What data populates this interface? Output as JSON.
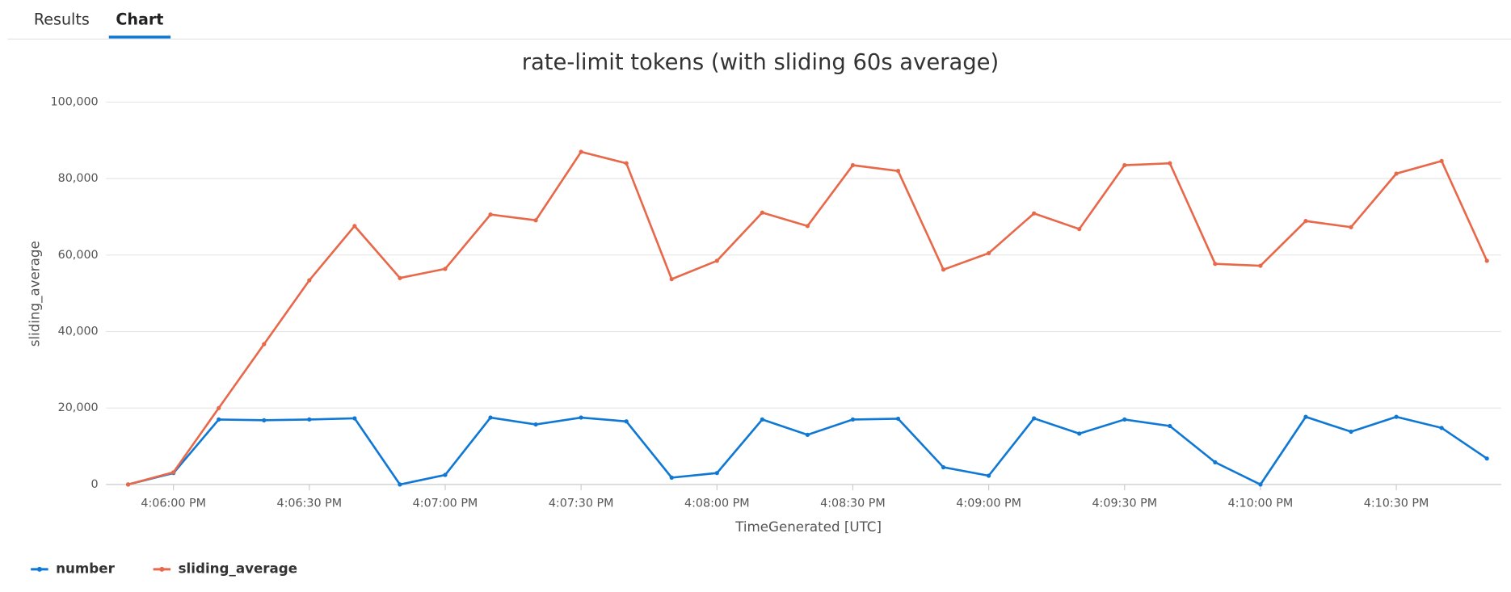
{
  "tabs": [
    "Results",
    "Chart"
  ],
  "chart_data": {
    "type": "line",
    "title": "rate-limit tokens (with sliding 60s average)",
    "x_label": "TimeGenerated [UTC]",
    "y_label": "sliding_average",
    "x": [
      "4:05:50 PM",
      "4:06:00 PM",
      "4:06:10 PM",
      "4:06:20 PM",
      "4:06:30 PM",
      "4:06:40 PM",
      "4:06:50 PM",
      "4:07:00 PM",
      "4:07:10 PM",
      "4:07:20 PM",
      "4:07:30 PM",
      "4:07:40 PM",
      "4:07:50 PM",
      "4:08:00 PM",
      "4:08:10 PM",
      "4:08:20 PM",
      "4:08:30 PM",
      "4:08:40 PM",
      "4:08:50 PM",
      "4:09:00 PM",
      "4:09:10 PM",
      "4:09:20 PM",
      "4:09:30 PM",
      "4:09:40 PM",
      "4:09:50 PM",
      "4:10:00 PM",
      "4:10:10 PM",
      "4:10:20 PM",
      "4:10:30 PM",
      "4:10:40 PM",
      "4:10:50 PM"
    ],
    "xticks": [
      "4:06:00 PM",
      "4:06:30 PM",
      "4:07:00 PM",
      "4:07:30 PM",
      "4:08:00 PM",
      "4:08:30 PM",
      "4:09:00 PM",
      "4:09:30 PM",
      "4:10:00 PM",
      "4:10:30 PM"
    ],
    "ylim": [
      0,
      100000
    ],
    "yticks": [
      {
        "value": 0,
        "label": "0"
      },
      {
        "value": 20000,
        "label": "20,000"
      },
      {
        "value": 40000,
        "label": "40,000"
      },
      {
        "value": 60000,
        "label": "60,000"
      },
      {
        "value": 80000,
        "label": "80,000"
      },
      {
        "value": 100000,
        "label": "100,000"
      }
    ],
    "grid": true,
    "series": [
      {
        "name": "number",
        "color": "#0f78d4",
        "values": [
          0,
          3000,
          17000,
          16800,
          17000,
          17300,
          0,
          2500,
          17500,
          15700,
          17500,
          16500,
          1800,
          3000,
          17000,
          13000,
          17000,
          17200,
          4500,
          2300,
          17300,
          13300,
          17000,
          15300,
          5800,
          0,
          17700,
          13800,
          17700,
          14800,
          6800
        ]
      },
      {
        "name": "sliding_average",
        "color": "#e8684a",
        "values": [
          0,
          3200,
          20000,
          36700,
          53400,
          67600,
          54000,
          56400,
          70600,
          69100,
          87000,
          84000,
          53700,
          58500,
          71100,
          67600,
          83500,
          82000,
          56200,
          60500,
          70900,
          66800,
          83500,
          84000,
          57700,
          57200,
          68900,
          67300,
          81300,
          84600,
          58500
        ]
      }
    ]
  }
}
